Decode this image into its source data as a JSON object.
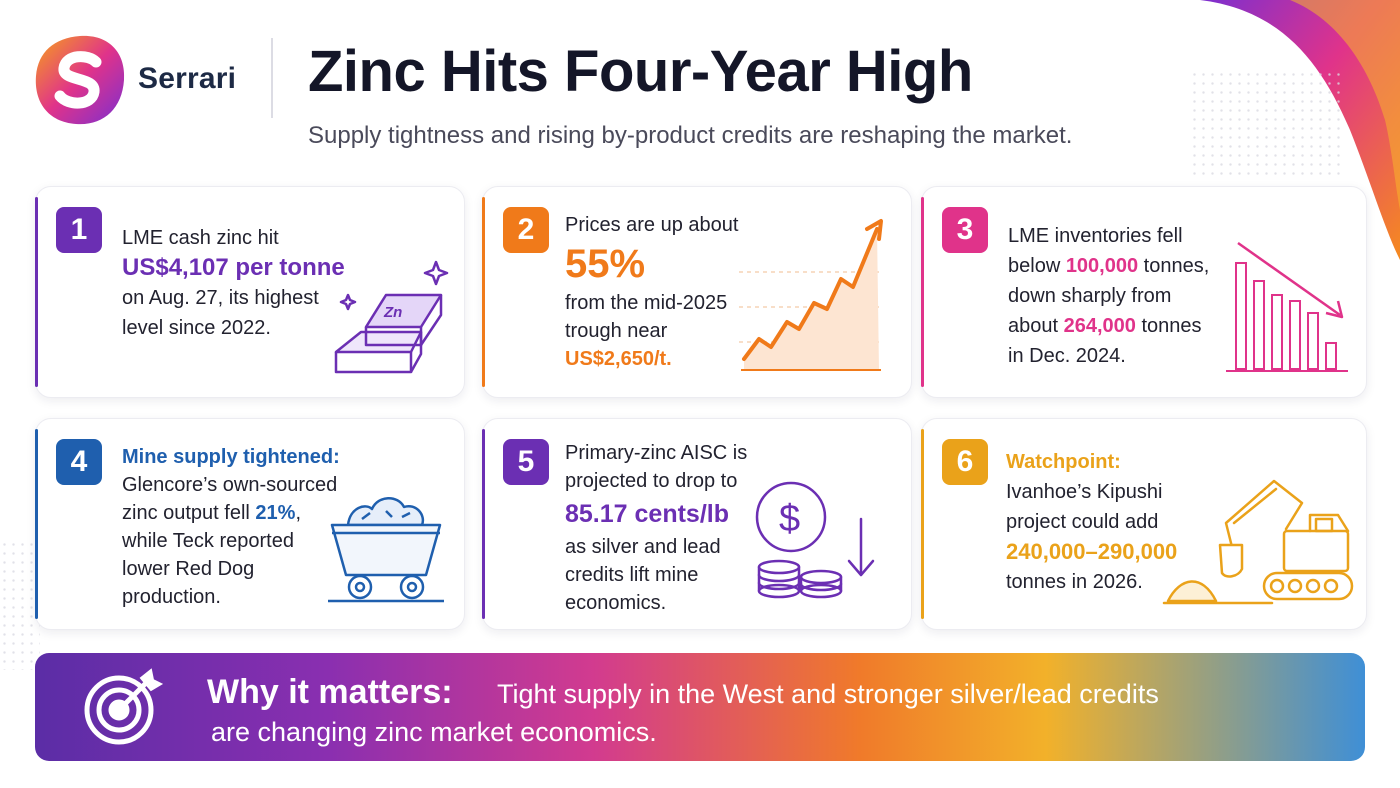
{
  "header": {
    "brand": "Serrari",
    "title": "Zinc Hits Four-Year High",
    "subtitle": "Supply tightness and rising by-product credits are reshaping the market."
  },
  "cards": [
    {
      "num": "1",
      "lines": [
        "LME cash zinc hit",
        "US$4,107 per tonne",
        "on Aug. 27, its highest",
        "level since 2022."
      ],
      "icon": "zinc-ingot-icon",
      "accent": "#6b2fb3"
    },
    {
      "num": "2",
      "lines": [
        "Prices are up about",
        "55%",
        "from the mid-2025",
        "trough near",
        "US$2,650/t."
      ],
      "icon": "rising-chart-icon",
      "accent": "#f07a1a"
    },
    {
      "num": "3",
      "l1": "LME inventories fell",
      "l2a": "below ",
      "l2b": "100,000",
      "l2c": " tonnes,",
      "l3": "down sharply from",
      "l4a": "about ",
      "l4b": "264,000",
      "l4c": " tonnes",
      "l5": "in Dec. 2024.",
      "icon": "falling-bars-icon",
      "accent": "#e0338a"
    },
    {
      "num": "4",
      "l1": "Mine supply tightened:",
      "l2": "Glencore’s own-sourced",
      "l3a": "zinc output fell ",
      "l3b": "21%",
      "l3c": ",",
      "l4": "while Teck reported",
      "l5": "lower Red Dog",
      "l6": "production.",
      "icon": "mine-cart-icon",
      "accent": "#1f5fae"
    },
    {
      "num": "5",
      "lines": [
        "Primary-zinc AISC is",
        "projected to drop to",
        "85.17 cents/lb",
        "as silver and lead",
        "credits lift mine",
        "economics."
      ],
      "icon": "dollar-coins-down-icon",
      "accent": "#6b2fb3"
    },
    {
      "num": "6",
      "lines": [
        "Watchpoint:",
        "Ivanhoe’s Kipushi",
        "project could add",
        "240,000–290,000",
        "tonnes in 2026."
      ],
      "icon": "excavator-icon",
      "accent": "#eaa21a"
    }
  ],
  "banner": {
    "heading": "Why it matters:",
    "body_line1": "Tight supply in the West and stronger silver/lead credits",
    "body_line2": "are changing zinc market economics.",
    "icon": "target-icon"
  },
  "colors": {
    "purple": "#6b2fb3",
    "orange": "#f07a1a",
    "pink": "#e0338a",
    "blue": "#1f5fae",
    "amber": "#eaa21a"
  }
}
